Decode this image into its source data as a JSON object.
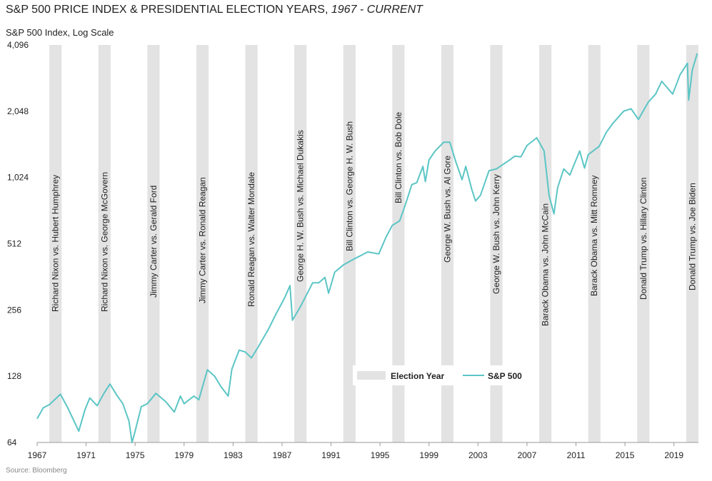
{
  "chart_data": {
    "type": "line",
    "title": "S&P 500 PRICE INDEX & PRESIDENTIAL ELECTION YEARS,",
    "title_period": "1967 - CURRENT",
    "y_label": "S&P 500 Index, Log Scale",
    "source": "Source: Bloomberg",
    "log_scale": true,
    "grid": false,
    "xlim": [
      1967,
      2021
    ],
    "xticks": [
      1967,
      1971,
      1975,
      1979,
      1983,
      1987,
      1991,
      1995,
      1999,
      2003,
      2007,
      2011,
      2015,
      2019
    ],
    "ylim": [
      64,
      4096
    ],
    "yticks": [
      64,
      128,
      256,
      512,
      {
        "value": 1024,
        "label": "1,024"
      },
      {
        "value": 2048,
        "label": "2,048"
      },
      {
        "value": 4096,
        "label": "4,096"
      }
    ],
    "band_name": "Election Year",
    "band_color": "#e3e3e3",
    "bands": [
      {
        "start": 1968,
        "end": 1969,
        "label": "Richard Nixon vs. Hubert Humphrey"
      },
      {
        "start": 1972,
        "end": 1973,
        "label": "Richard Nixon vs. George McGovern"
      },
      {
        "start": 1976,
        "end": 1977,
        "label": "Jimmy Carter vs. Gerald Ford"
      },
      {
        "start": 1980,
        "end": 1981,
        "label": "Jimmy Carter vs. Ronald Reagan"
      },
      {
        "start": 1984,
        "end": 1985,
        "label": "Ronald Reagan vs. Walter Mondale"
      },
      {
        "start": 1988,
        "end": 1989,
        "label": "George H. W. Bush vs. Michael Dukakis"
      },
      {
        "start": 1992,
        "end": 1993,
        "label": "Bill Clinton vs. George H. W. Bush"
      },
      {
        "start": 1996,
        "end": 1997,
        "label": "Bill Clinton vs. Bob Dole"
      },
      {
        "start": 2000,
        "end": 2001,
        "label": "George W. Bush vs. Al Gore"
      },
      {
        "start": 2004,
        "end": 2005,
        "label": "George W. Bush vs. John Kerry"
      },
      {
        "start": 2008,
        "end": 2009,
        "label": "Barack Obama vs. John McCain"
      },
      {
        "start": 2012,
        "end": 2013,
        "label": "Barack Obama vs. Mitt Romney"
      },
      {
        "start": 2016,
        "end": 2017,
        "label": "Donald Trump vs. Hillary Clinton"
      },
      {
        "start": 2020,
        "end": 2021,
        "label": "Donald Trump vs. Joe Biden"
      }
    ],
    "series": [
      {
        "name": "S&P 500",
        "color": "#5cc5c5",
        "x": [
          1967.0,
          1967.5,
          1968.0,
          1968.9,
          1969.5,
          1970.4,
          1970.9,
          1971.3,
          1971.9,
          1972.5,
          1972.95,
          1973.5,
          1974.0,
          1974.5,
          1974.75,
          1975.0,
          1975.5,
          1976.0,
          1976.7,
          1977.5,
          1978.2,
          1978.7,
          1979.0,
          1979.8,
          1980.2,
          1980.9,
          1981.5,
          1982.0,
          1982.6,
          1982.9,
          1983.5,
          1984.0,
          1984.5,
          1985.0,
          1985.9,
          1986.5,
          1987.2,
          1987.65,
          1987.85,
          1988.5,
          1989.5,
          1990.0,
          1990.5,
          1990.8,
          1991.3,
          1992.0,
          1993.0,
          1994.0,
          1994.9,
          1995.5,
          1996.0,
          1996.6,
          1997.0,
          1997.6,
          1998.0,
          1998.5,
          1998.7,
          1999.0,
          1999.5,
          2000.2,
          2000.7,
          2001.2,
          2001.7,
          2002.0,
          2002.5,
          2002.8,
          2003.2,
          2003.9,
          2004.5,
          2005.5,
          2006.0,
          2006.5,
          2007.0,
          2007.8,
          2008.4,
          2008.8,
          2009.2,
          2009.5,
          2010.0,
          2010.5,
          2011.3,
          2011.7,
          2012.0,
          2012.9,
          2013.5,
          2014.0,
          2014.9,
          2015.5,
          2016.1,
          2016.9,
          2017.5,
          2018.0,
          2018.9,
          2019.5,
          2020.1,
          2020.2,
          2020.5,
          2020.9
        ],
        "values": [
          82,
          92,
          95,
          106,
          92,
          72,
          90,
          102,
          94,
          108,
          118,
          105,
          96,
          80,
          64,
          72,
          93,
          96,
          107,
          98,
          88,
          104,
          96,
          104,
          100,
          137,
          128,
          115,
          104,
          138,
          168,
          165,
          155,
          172,
          210,
          245,
          290,
          330,
          230,
          265,
          340,
          340,
          360,
          305,
          380,
          410,
          440,
          470,
          460,
          550,
          620,
          650,
          750,
          950,
          970,
          1150,
          980,
          1230,
          1350,
          1480,
          1480,
          1200,
          1000,
          1150,
          900,
          800,
          850,
          1100,
          1120,
          1220,
          1280,
          1270,
          1430,
          1550,
          1350,
          850,
          700,
          920,
          1120,
          1050,
          1350,
          1130,
          1300,
          1420,
          1650,
          1800,
          2050,
          2100,
          1880,
          2250,
          2450,
          2800,
          2450,
          3000,
          3380,
          2300,
          3150,
          3750
        ]
      }
    ]
  }
}
